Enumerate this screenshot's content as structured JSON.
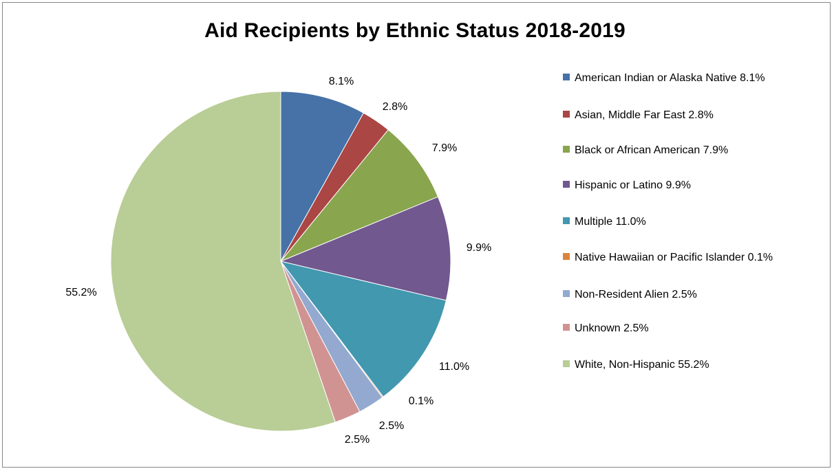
{
  "chart_data": {
    "type": "pie",
    "title": "Aid Recipients by Ethnic Status 2018-2019",
    "legend_position": "right",
    "start_angle": "12 o'clock, clockwise",
    "slices": [
      {
        "name": "American Indian or Alaska Native",
        "value": 8.1,
        "label": "8.1%",
        "legend": "American Indian or Alaska Native 8.1%",
        "color": "#4672A8"
      },
      {
        "name": "Asian, Middle Far East",
        "value": 2.8,
        "label": "2.8%",
        "legend": "Asian, Middle Far East 2.8%",
        "color": "#AA4644"
      },
      {
        "name": "Black or African American",
        "value": 7.9,
        "label": "7.9%",
        "legend": "Black or African American 7.9%",
        "color": "#89A54E"
      },
      {
        "name": "Hispanic or Latino",
        "value": 9.9,
        "label": "9.9%",
        "legend": "Hispanic or Latino 9.9%",
        "color": "#71588F"
      },
      {
        "name": "Multiple",
        "value": 11.0,
        "label": "11.0%",
        "legend": "Multiple 11.0%",
        "color": "#4198AF"
      },
      {
        "name": "Native Hawaiian or Pacific Islander",
        "value": 0.1,
        "label": "0.1%",
        "legend": "Native Hawaiian or Pacific Islander 0.1%",
        "color": "#DB843D"
      },
      {
        "name": "Non-Resident Alien",
        "value": 2.5,
        "label": "2.5%",
        "legend": "Non-Resident Alien 2.5%",
        "color": "#93A9CF"
      },
      {
        "name": "Unknown",
        "value": 2.5,
        "label": "2.5%",
        "legend": "Unknown 2.5%",
        "color": "#D19392"
      },
      {
        "name": "White, Non-Hispanic",
        "value": 55.2,
        "label": "55.2%",
        "legend": "White, Non-Hispanic 55.2%",
        "color": "#B9CD96"
      }
    ]
  }
}
